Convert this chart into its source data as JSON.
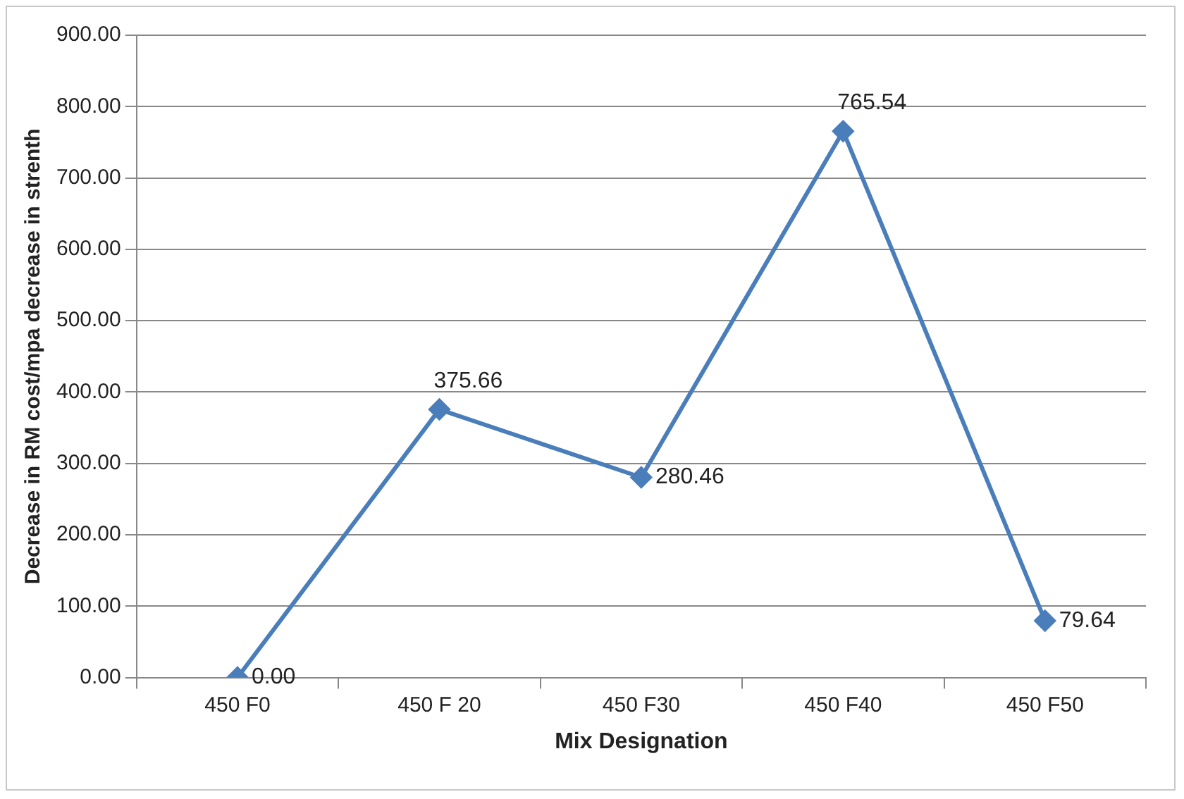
{
  "chart_data": {
    "type": "line",
    "xlabel": "Mix Designation",
    "ylabel": "Decrease in RM cost/mpa decrease in strenth",
    "categories": [
      "450 F0",
      "450 F 20",
      "450 F30",
      "450 F40",
      "450 F50"
    ],
    "series": [
      {
        "color": "#4a7ebb",
        "values": [
          0,
          375.66,
          280.46,
          765.54,
          79.64
        ],
        "value_labels": [
          "0.00",
          "375.66",
          "280.46",
          "765.54",
          "79.64"
        ]
      }
    ],
    "ylim": [
      0,
      900
    ],
    "yticks": [
      {
        "value": 0,
        "label": "0.00"
      },
      {
        "value": 100,
        "label": "100.00"
      },
      {
        "value": 200,
        "label": "200.00"
      },
      {
        "value": 300,
        "label": "300.00"
      },
      {
        "value": 400,
        "label": "400.00"
      },
      {
        "value": 500,
        "label": "500.00"
      },
      {
        "value": 600,
        "label": "600.00"
      },
      {
        "value": 700,
        "label": "700.00"
      },
      {
        "value": 800,
        "label": "800.00"
      },
      {
        "value": 900,
        "label": "900.00"
      }
    ],
    "grid": "y",
    "legend": false,
    "marker": "diamond",
    "line_style": "solid"
  }
}
